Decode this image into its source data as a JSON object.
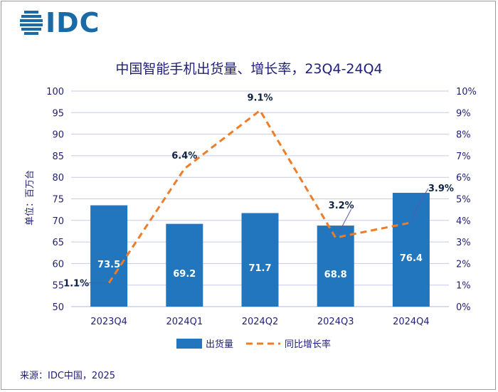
{
  "brand": {
    "logo_text": "IDC",
    "color": "#1a6aa8"
  },
  "source": "来源：IDC中国，2025",
  "chart_data": {
    "type": "bar+line",
    "title": "中国智能手机出货量、增长率，23Q4-24Q4",
    "categories": [
      "2023Q4",
      "2024Q1",
      "2024Q2",
      "2024Q3",
      "2024Q4"
    ],
    "series": [
      {
        "name": "出货量",
        "kind": "bar",
        "axis": "left",
        "color": "#2176bd",
        "values": [
          73.5,
          69.2,
          71.7,
          68.8,
          76.4
        ],
        "labels": [
          "73.5",
          "69.2",
          "71.7",
          "68.8",
          "76.4"
        ]
      },
      {
        "name": "同比增长率",
        "kind": "line",
        "style": "dashed",
        "axis": "right",
        "color": "#f07c28",
        "values": [
          1.1,
          6.4,
          9.1,
          3.2,
          3.9
        ],
        "labels": [
          "1.1%",
          "6.4%",
          "9.1%",
          "3.2%",
          "3.9%"
        ]
      }
    ],
    "y_left": {
      "label": "单位：百万台",
      "range": [
        50,
        100
      ],
      "ticks": [
        "50",
        "55",
        "60",
        "65",
        "70",
        "75",
        "80",
        "85",
        "90",
        "95",
        "100"
      ]
    },
    "y_right": {
      "range": [
        0,
        10
      ],
      "ticks": [
        "0%",
        "1%",
        "2%",
        "3%",
        "4%",
        "5%",
        "6%",
        "7%",
        "8%",
        "9%",
        "10%"
      ]
    },
    "grid": true,
    "legend_position": "bottom"
  }
}
